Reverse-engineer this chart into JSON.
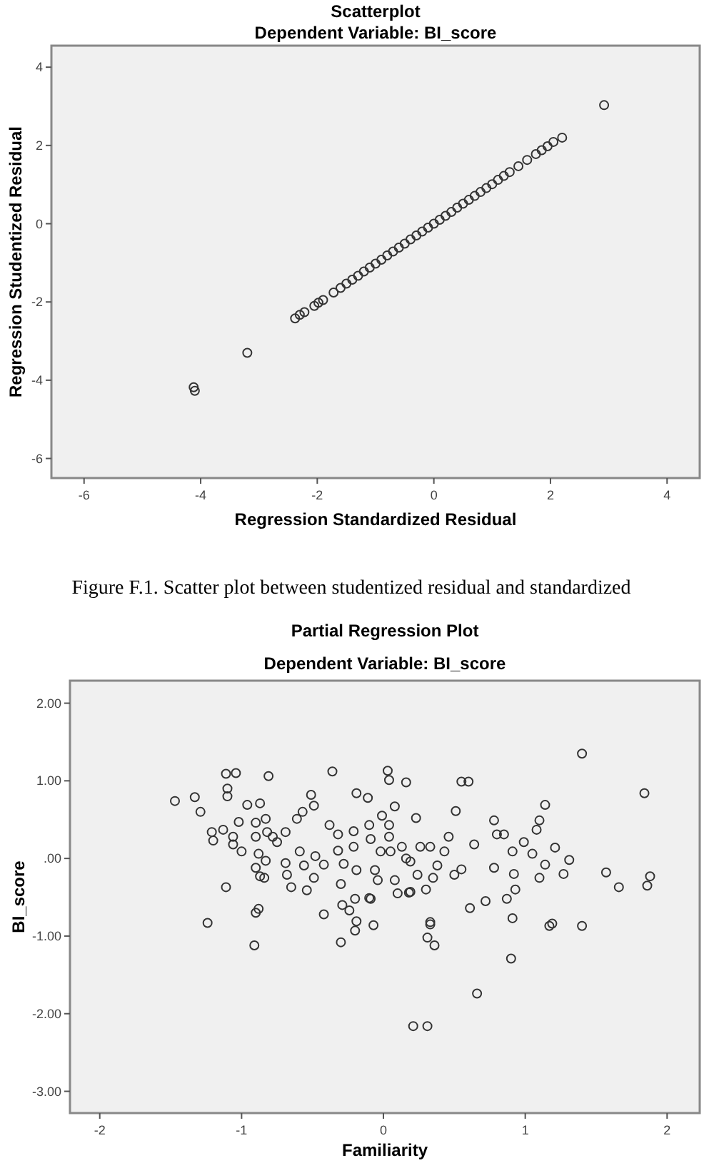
{
  "chart_data": [
    {
      "type": "scatter",
      "title": "Scatterplot",
      "subtitle": "Dependent Variable: BI_score",
      "xlabel": "Regression Standardized Residual",
      "ylabel": "Regression Studentized Residual",
      "xlim": [
        -6.56,
        4.56
      ],
      "ylim": [
        -6.5,
        4.55
      ],
      "xticks": [
        -6,
        -4,
        -2,
        0,
        2,
        4
      ],
      "yticks": [
        -6,
        -4,
        -2,
        0,
        2,
        4
      ],
      "grid": false,
      "marker": "circle",
      "annotations": [
        "Figure F.1. Scatter plot between studentized residual and standardized"
      ],
      "x": [
        -4.12,
        -4.1,
        -3.2,
        -2.38,
        -2.3,
        -2.22,
        -2.05,
        -1.98,
        -1.9,
        -1.72,
        -1.6,
        -1.5,
        -1.4,
        -1.3,
        -1.2,
        -1.1,
        -1.0,
        -0.9,
        -0.8,
        -0.7,
        -0.6,
        -0.5,
        -0.4,
        -0.3,
        -0.2,
        -0.1,
        0,
        0.1,
        0.2,
        0.3,
        0.4,
        0.5,
        0.6,
        0.7,
        0.8,
        0.9,
        1.0,
        1.1,
        1.2,
        1.3,
        1.45,
        1.6,
        1.75,
        1.85,
        1.95,
        2.05,
        2.2,
        2.92
      ],
      "values": [
        -4.18,
        -4.27,
        -3.3,
        -2.42,
        -2.33,
        -2.26,
        -2.1,
        -2.02,
        -1.95,
        -1.76,
        -1.64,
        -1.53,
        -1.43,
        -1.33,
        -1.22,
        -1.12,
        -1.02,
        -0.92,
        -0.81,
        -0.71,
        -0.61,
        -0.51,
        -0.4,
        -0.3,
        -0.2,
        -0.1,
        0,
        0.1,
        0.2,
        0.3,
        0.41,
        0.51,
        0.61,
        0.71,
        0.81,
        0.91,
        1.01,
        1.12,
        1.22,
        1.32,
        1.47,
        1.63,
        1.78,
        1.88,
        1.98,
        2.09,
        2.2,
        3.03
      ]
    },
    {
      "type": "scatter",
      "title": "Partial Regression Plot",
      "subtitle": "Dependent Variable: BI_score",
      "xlabel": "Familiarity",
      "ylabel": "BI_score",
      "xlim": [
        -2.21,
        2.23
      ],
      "ylim": [
        -3.28,
        2.29
      ],
      "xticks": [
        -2,
        -1,
        0,
        1,
        2
      ],
      "yticks": [
        {
          "value": -3,
          "label": "-3.00"
        },
        {
          "value": -2,
          "label": "-2.00"
        },
        {
          "value": -1,
          "label": "-1.00"
        },
        {
          "value": 0,
          "label": ".00"
        },
        {
          "value": 1,
          "label": "1.00"
        },
        {
          "value": 2,
          "label": "2.00"
        }
      ],
      "grid": false,
      "marker": "circle",
      "x": [
        -1.47,
        -1.33,
        -1.29,
        -1.21,
        -1.2,
        -1.13,
        -1.11,
        -1.04,
        -1.1,
        -1.1,
        -1.06,
        -1.06,
        -1.02,
        -1.0,
        -1.11,
        -0.96,
        -0.87,
        -0.9,
        -0.9,
        -0.83,
        -0.81,
        -0.9,
        -0.87,
        -0.84,
        -0.83,
        -0.88,
        -0.82,
        -0.78,
        -0.75,
        -0.69,
        -0.69,
        -0.68,
        -0.65,
        -0.61,
        -0.57,
        -0.59,
        -0.56,
        -0.51,
        -0.49,
        -0.54,
        -0.49,
        -0.48,
        -0.42,
        -0.42,
        -0.36,
        -0.38,
        -0.32,
        -0.32,
        -0.3,
        -0.28,
        -0.29,
        -0.21,
        -0.21,
        -0.19,
        -0.2,
        -0.19,
        -0.11,
        -0.1,
        -0.09,
        -0.1,
        -0.06,
        -0.04,
        -0.02,
        -0.01,
        0.03,
        0.04,
        0.04,
        0.04,
        0.05,
        0.08,
        0.08,
        0.1,
        0.13,
        0.16,
        0.16,
        0.18,
        0.19,
        0.23,
        0.24,
        0.26,
        0.3,
        0.33,
        0.35,
        0.38,
        0.43,
        0.46,
        0.51,
        0.5,
        0.55,
        0.61,
        0.55,
        0.6,
        0.64,
        0.72,
        0.78,
        0.78,
        0.8,
        0.85,
        0.87,
        0.91,
        0.92,
        0.93,
        0.91,
        0.99,
        1.05,
        1.08,
        1.1,
        1.1,
        1.14,
        1.14,
        1.21,
        1.27,
        1.31,
        1.4,
        1.57,
        1.66,
        1.84,
        1.88,
        1.86,
        -1.24,
        -0.91,
        -0.9,
        -0.88,
        -0.3,
        -0.24,
        -0.2,
        -0.19,
        -0.09,
        -0.07,
        0.19,
        0.31,
        0.33,
        0.33,
        0.36,
        0.21,
        0.31,
        0.66,
        0.9,
        1.17,
        1.19,
        1.4
      ],
      "values": [
        0.74,
        0.79,
        0.6,
        0.34,
        0.23,
        0.37,
        1.09,
        1.1,
        0.9,
        0.8,
        0.28,
        0.18,
        0.47,
        0.09,
        -0.37,
        0.69,
        0.71,
        0.46,
        0.28,
        0.51,
        1.06,
        -0.12,
        -0.23,
        -0.25,
        -0.03,
        0.06,
        0.34,
        0.28,
        0.21,
        0.34,
        -0.06,
        -0.21,
        -0.37,
        0.51,
        0.6,
        0.09,
        -0.09,
        0.82,
        0.68,
        -0.41,
        -0.25,
        0.03,
        -0.08,
        -0.72,
        1.12,
        0.43,
        0.31,
        0.1,
        -0.33,
        -0.07,
        -0.6,
        0.35,
        0.15,
        -0.15,
        -0.52,
        0.84,
        0.78,
        0.43,
        0.25,
        -0.51,
        -0.15,
        -0.28,
        0.09,
        0.55,
        1.13,
        1.01,
        0.43,
        0.28,
        0.09,
        0.67,
        -0.28,
        -0.45,
        0.15,
        0.98,
        0.0,
        -0.44,
        -0.04,
        0.52,
        -0.21,
        0.15,
        -0.4,
        0.15,
        -0.25,
        -0.09,
        0.09,
        0.28,
        0.61,
        -0.21,
        -0.14,
        -0.64,
        0.99,
        0.99,
        0.18,
        -0.55,
        -0.12,
        0.49,
        0.31,
        0.31,
        -0.52,
        0.09,
        -0.2,
        -0.4,
        -0.77,
        0.21,
        0.06,
        0.37,
        0.49,
        -0.25,
        0.69,
        -0.08,
        0.14,
        -0.2,
        -0.02,
        1.35,
        -0.18,
        -0.37,
        0.84,
        -0.23,
        -0.35,
        -0.83,
        -1.12,
        -0.7,
        -0.65,
        -1.08,
        -0.67,
        -0.93,
        -0.81,
        -0.52,
        -0.86,
        -0.43,
        -1.02,
        -0.82,
        -0.85,
        -1.12,
        -2.16,
        -2.16,
        -1.74,
        -1.29,
        -0.87,
        -0.84,
        -0.87
      ]
    }
  ]
}
